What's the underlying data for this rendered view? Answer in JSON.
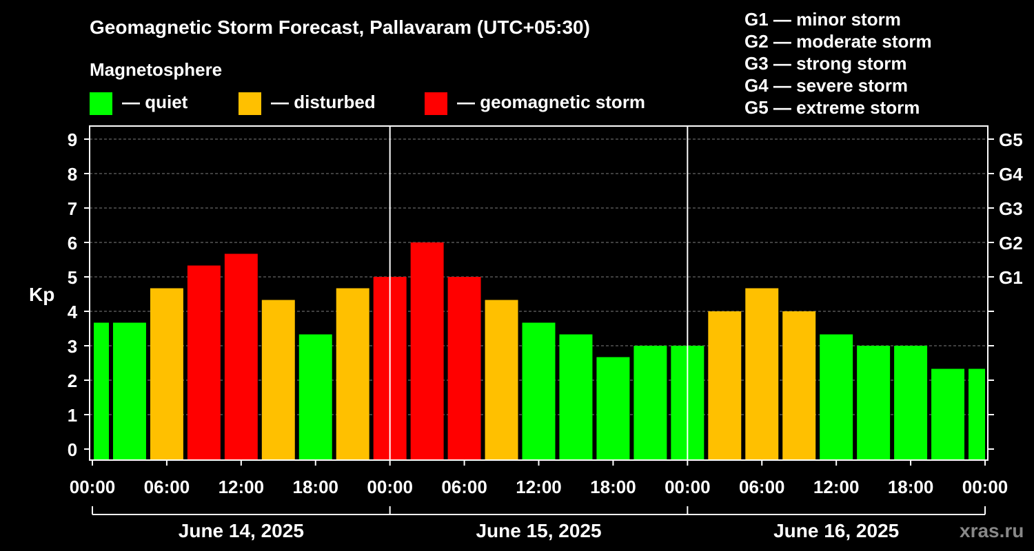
{
  "title": "Geomagnetic Storm Forecast, Pallavaram (UTC+05:30)",
  "legend": {
    "heading": "Magnetosphere",
    "items": [
      {
        "label": "— quiet",
        "color": "#00ff00"
      },
      {
        "label": "— disturbed",
        "color": "#ffc000"
      },
      {
        "label": "— geomagnetic storm",
        "color": "#ff0000"
      }
    ]
  },
  "storm_scale": [
    "G1 — minor storm",
    "G2 — moderate storm",
    "G3 — strong storm",
    "G4 — severe storm",
    "G5 — extreme storm"
  ],
  "watermark": "xras.ru",
  "chart_data": {
    "type": "bar",
    "ylabel": "Kp",
    "ylim": [
      0,
      9
    ],
    "yticks": [
      "0",
      "1",
      "2",
      "3",
      "4",
      "5",
      "6",
      "7",
      "8",
      "9"
    ],
    "right_ticks": [
      {
        "kp": 5,
        "label": "G1"
      },
      {
        "kp": 6,
        "label": "G2"
      },
      {
        "kp": 7,
        "label": "G3"
      },
      {
        "kp": 8,
        "label": "G4"
      },
      {
        "kp": 9,
        "label": "G5"
      }
    ],
    "xticks": [
      "00:00",
      "06:00",
      "12:00",
      "18:00",
      "00:00",
      "06:00",
      "12:00",
      "18:00",
      "00:00",
      "06:00",
      "12:00",
      "18:00",
      "00:00"
    ],
    "days": [
      "June 14, 2025",
      "June 15, 2025",
      "June 16, 2025"
    ],
    "interval_hours": 3,
    "values": [
      3.67,
      3.67,
      4.67,
      5.33,
      5.67,
      4.33,
      3.33,
      4.67,
      5.0,
      6.0,
      5.0,
      4.33,
      3.67,
      3.33,
      2.67,
      3.0,
      3.0,
      4.0,
      4.67,
      4.0,
      3.33,
      3.0,
      3.0,
      2.33,
      2.33
    ],
    "colors": {
      "quiet": "#00ff00",
      "disturbed": "#ffc000",
      "storm": "#ff0000"
    }
  }
}
